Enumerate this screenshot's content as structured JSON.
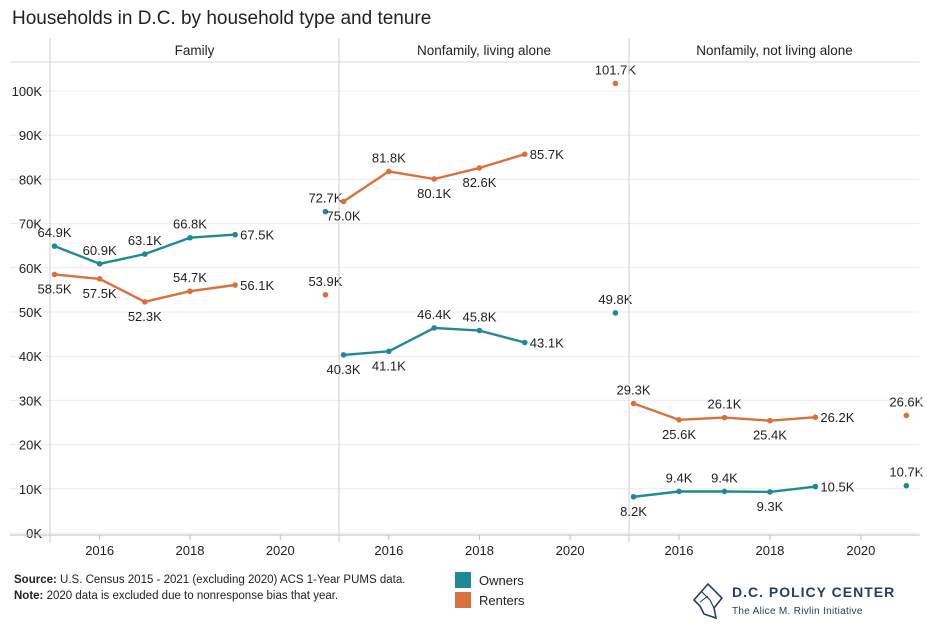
{
  "title": "Households in D.C. by household type and tenure",
  "footer": {
    "source_label": "Source:",
    "source_text": " U.S. Census 2015 - 2021 (excluding 2020) ACS 1-Year PUMS data.",
    "note_label": "Note:",
    "note_text": " 2020 data is excluded due to nonresponse bias that year."
  },
  "legend": [
    {
      "label": "Owners",
      "color": "#1f8a94"
    },
    {
      "label": "Renters",
      "color": "#d9713d"
    }
  ],
  "logo": {
    "name": "D.C. POLICY CENTER",
    "subtitle": "The Alice M. Rivlin Initiative"
  },
  "chart_data": {
    "type": "line",
    "ylim": [
      0,
      105000
    ],
    "y_ticks": [
      {
        "value": 0,
        "label": "0K"
      },
      {
        "value": 10000,
        "label": "10K"
      },
      {
        "value": 20000,
        "label": "20K"
      },
      {
        "value": 30000,
        "label": "30K"
      },
      {
        "value": 40000,
        "label": "40K"
      },
      {
        "value": 50000,
        "label": "50K"
      },
      {
        "value": 60000,
        "label": "60K"
      },
      {
        "value": 70000,
        "label": "70K"
      },
      {
        "value": 80000,
        "label": "80K"
      },
      {
        "value": 90000,
        "label": "90K"
      },
      {
        "value": 100000,
        "label": "100K"
      }
    ],
    "x_ticks": [
      {
        "value": 2016,
        "label": "2016"
      },
      {
        "value": 2018,
        "label": "2018"
      },
      {
        "value": 2020,
        "label": "2020"
      }
    ],
    "xlim": [
      2014.9,
      2021.3
    ],
    "grid": true,
    "legend_placement": "bottom-center",
    "panels": [
      {
        "title": "Family",
        "series": [
          {
            "name": "Owners",
            "color": "#1f8a94",
            "points": [
              {
                "x": 2015,
                "y": 64900,
                "label": "64.9K",
                "pos": "above"
              },
              {
                "x": 2016,
                "y": 60900,
                "label": "60.9K",
                "pos": "above"
              },
              {
                "x": 2017,
                "y": 63100,
                "label": "63.1K",
                "pos": "above"
              },
              {
                "x": 2018,
                "y": 66800,
                "label": "66.8K",
                "pos": "above"
              },
              {
                "x": 2019,
                "y": 67500,
                "label": "67.5K",
                "pos": "right"
              },
              {
                "x": 2021,
                "y": 72700,
                "label": "72.7K",
                "pos": "above"
              }
            ]
          },
          {
            "name": "Renters",
            "color": "#d9713d",
            "points": [
              {
                "x": 2015,
                "y": 58500,
                "label": "58.5K",
                "pos": "below"
              },
              {
                "x": 2016,
                "y": 57500,
                "label": "57.5K",
                "pos": "below"
              },
              {
                "x": 2017,
                "y": 52300,
                "label": "52.3K",
                "pos": "below"
              },
              {
                "x": 2018,
                "y": 54700,
                "label": "54.7K",
                "pos": "above"
              },
              {
                "x": 2019,
                "y": 56100,
                "label": "56.1K",
                "pos": "right"
              },
              {
                "x": 2021,
                "y": 53900,
                "label": "53.9K",
                "pos": "above"
              }
            ]
          }
        ]
      },
      {
        "title": "Nonfamily, living alone",
        "series": [
          {
            "name": "Owners",
            "color": "#1f8a94",
            "points": [
              {
                "x": 2015,
                "y": 40300,
                "label": "40.3K",
                "pos": "below"
              },
              {
                "x": 2016,
                "y": 41100,
                "label": "41.1K",
                "pos": "below"
              },
              {
                "x": 2017,
                "y": 46400,
                "label": "46.4K",
                "pos": "above"
              },
              {
                "x": 2018,
                "y": 45800,
                "label": "45.8K",
                "pos": "above"
              },
              {
                "x": 2019,
                "y": 43100,
                "label": "43.1K",
                "pos": "right"
              },
              {
                "x": 2021,
                "y": 49800,
                "label": "49.8K",
                "pos": "above"
              }
            ]
          },
          {
            "name": "Renters",
            "color": "#d9713d",
            "points": [
              {
                "x": 2015,
                "y": 75000,
                "label": "75.0K",
                "pos": "below"
              },
              {
                "x": 2016,
                "y": 81800,
                "label": "81.8K",
                "pos": "above"
              },
              {
                "x": 2017,
                "y": 80100,
                "label": "80.1K",
                "pos": "below"
              },
              {
                "x": 2018,
                "y": 82600,
                "label": "82.6K",
                "pos": "below"
              },
              {
                "x": 2019,
                "y": 85700,
                "label": "85.7K",
                "pos": "right"
              },
              {
                "x": 2021,
                "y": 101700,
                "label": "101.7K",
                "pos": "above"
              }
            ]
          }
        ]
      },
      {
        "title": "Nonfamily, not living alone",
        "series": [
          {
            "name": "Owners",
            "color": "#1f8a94",
            "points": [
              {
                "x": 2015,
                "y": 8200,
                "label": "8.2K",
                "pos": "below"
              },
              {
                "x": 2016,
                "y": 9400,
                "label": "9.4K",
                "pos": "above"
              },
              {
                "x": 2017,
                "y": 9400,
                "label": "9.4K",
                "pos": "above"
              },
              {
                "x": 2018,
                "y": 9300,
                "label": "9.3K",
                "pos": "below"
              },
              {
                "x": 2019,
                "y": 10500,
                "label": "10.5K",
                "pos": "right"
              },
              {
                "x": 2021,
                "y": 10700,
                "label": "10.7K",
                "pos": "above"
              }
            ]
          },
          {
            "name": "Renters",
            "color": "#d9713d",
            "points": [
              {
                "x": 2015,
                "y": 29300,
                "label": "29.3K",
                "pos": "above"
              },
              {
                "x": 2016,
                "y": 25600,
                "label": "25.6K",
                "pos": "below"
              },
              {
                "x": 2017,
                "y": 26100,
                "label": "26.1K",
                "pos": "above"
              },
              {
                "x": 2018,
                "y": 25400,
                "label": "25.4K",
                "pos": "below"
              },
              {
                "x": 2019,
                "y": 26200,
                "label": "26.2K",
                "pos": "right"
              },
              {
                "x": 2021,
                "y": 26600,
                "label": "26.6K",
                "pos": "above"
              }
            ]
          }
        ]
      }
    ]
  }
}
